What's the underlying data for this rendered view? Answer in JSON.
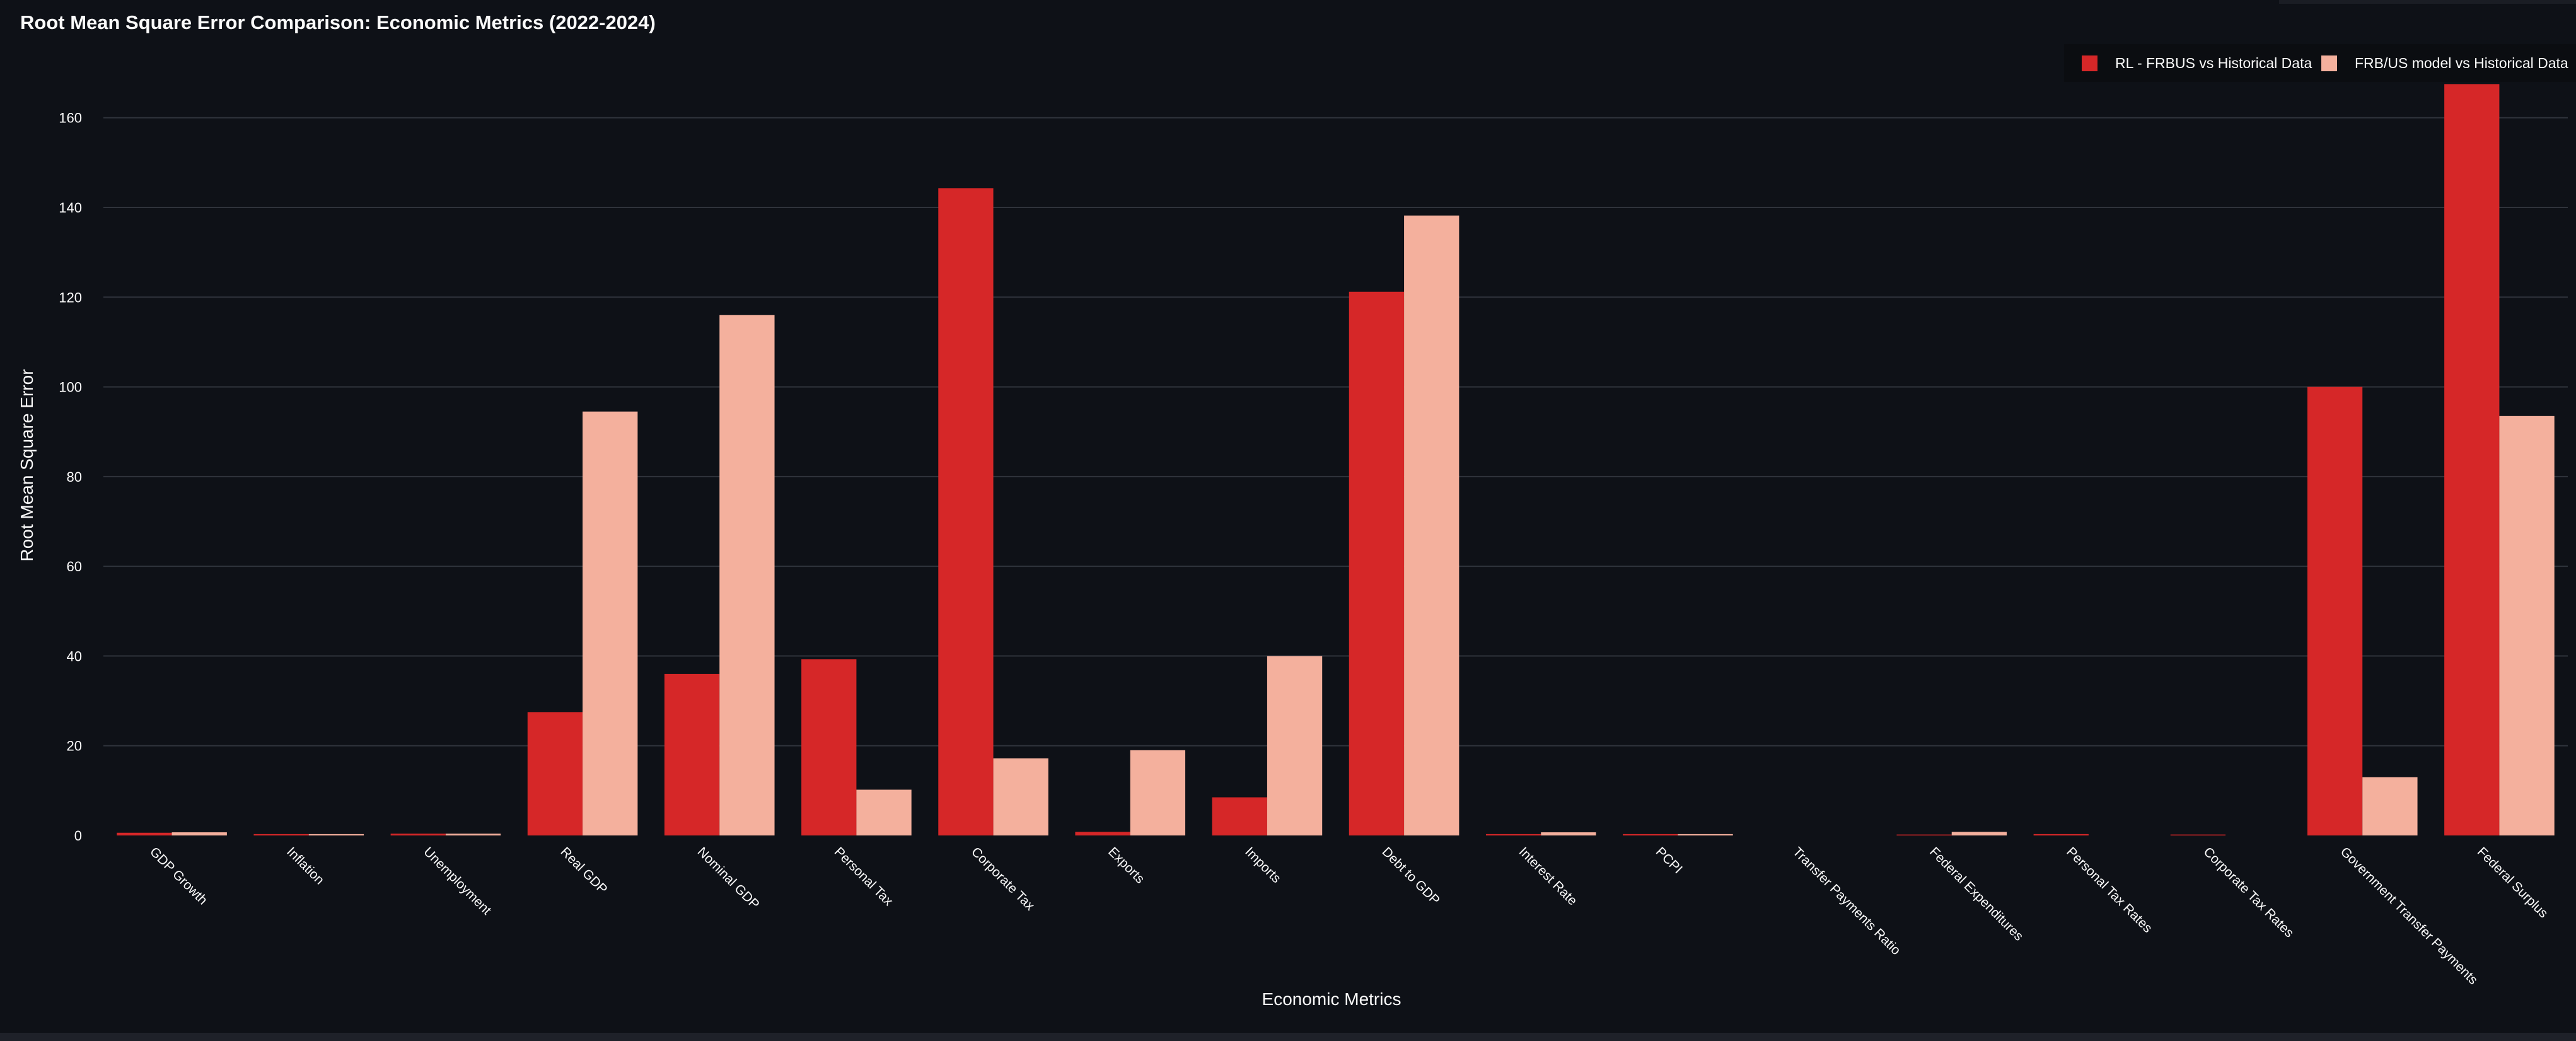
{
  "chart_data": {
    "type": "bar",
    "title": "Root Mean Square Error Comparison: Economic Metrics (2022-2024)",
    "xlabel": "Economic Metrics",
    "ylabel": "Root Mean Square Error",
    "ylim": [
      0,
      175
    ],
    "yticks": [
      0,
      20,
      40,
      60,
      80,
      100,
      120,
      140,
      160
    ],
    "grid": true,
    "legend_position": "top-right",
    "categories": [
      "GDP Growth",
      "Inflation",
      "Unemployment",
      "Real GDP",
      "Nominal GDP",
      "Personal Tax",
      "Corporate Tax",
      "Exports",
      "Imports",
      "Debt to GDP",
      "Interest Rate",
      "PCPI",
      "Transfer Payments Ratio",
      "Federal Expenditures",
      "Personal Tax Rates",
      "Corporate Tax Rates",
      "Government Transfer Payments",
      "Federal Surplus"
    ],
    "series": [
      {
        "name": "RL - FRBUS vs Historical Data",
        "color": "#d62728",
        "values": [
          0.6,
          0.3,
          0.4,
          27.5,
          36,
          39.3,
          144.3,
          0.8,
          8.5,
          121.2,
          0.3,
          0.3,
          0,
          0.2,
          0.3,
          0.2,
          100,
          167.5
        ]
      },
      {
        "name": "FRB/US model vs Historical Data",
        "color": "#f4b09d",
        "values": [
          0.7,
          0.3,
          0.4,
          94.5,
          116,
          10.2,
          17.2,
          19,
          40,
          138.2,
          0.7,
          0.3,
          0,
          0.8,
          0,
          0,
          13,
          93.5
        ]
      }
    ]
  },
  "colors": {
    "background": "#0e1117",
    "grid": "#2f333b",
    "text": "#fafafa",
    "legend_background": "#0b0d11"
  }
}
